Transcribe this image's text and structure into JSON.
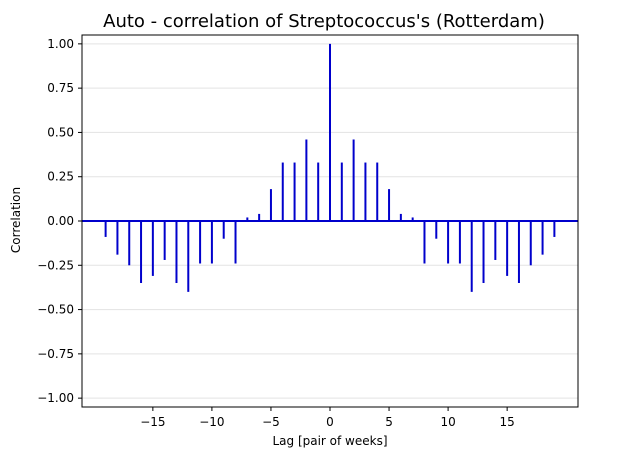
{
  "chart_data": {
    "type": "bar",
    "title": "Auto - correlation of Streptococcus's (Rotterdam)",
    "xlabel": "Lag [pair of weeks]",
    "ylabel": "Correlation",
    "xlim": [
      -21,
      21
    ],
    "ylim": [
      -1.05,
      1.05
    ],
    "x_ticks": [
      -15,
      -10,
      -5,
      0,
      5,
      10,
      15
    ],
    "x_tick_labels": [
      "−15",
      "−10",
      "−5",
      "0",
      "5",
      "10",
      "15"
    ],
    "y_ticks": [
      -1.0,
      -0.75,
      -0.5,
      -0.25,
      0.0,
      0.25,
      0.5,
      0.75,
      1.0
    ],
    "y_tick_labels": [
      "−1.00",
      "−0.75",
      "−0.50",
      "−0.25",
      "0.00",
      "0.25",
      "0.50",
      "0.75",
      "1.00"
    ],
    "grid": "horizontal",
    "baseline": 0,
    "color": "#0000cc",
    "lags": [
      -19,
      -18,
      -17,
      -16,
      -15,
      -14,
      -13,
      -12,
      -11,
      -10,
      -9,
      -8,
      -7,
      -6,
      -5,
      -4,
      -3,
      -2,
      -1,
      0,
      1,
      2,
      3,
      4,
      5,
      6,
      7,
      8,
      9,
      10,
      11,
      12,
      13,
      14,
      15,
      16,
      17,
      18,
      19
    ],
    "values": [
      -0.09,
      -0.19,
      -0.25,
      -0.35,
      -0.31,
      -0.22,
      -0.35,
      -0.4,
      -0.24,
      -0.24,
      -0.1,
      -0.24,
      0.02,
      0.04,
      0.18,
      0.33,
      0.33,
      0.46,
      0.33,
      1.0,
      0.33,
      0.46,
      0.33,
      0.33,
      0.18,
      0.04,
      0.02,
      -0.24,
      -0.1,
      -0.24,
      -0.24,
      -0.4,
      -0.35,
      -0.22,
      -0.31,
      -0.35,
      -0.25,
      -0.19,
      -0.09
    ]
  }
}
